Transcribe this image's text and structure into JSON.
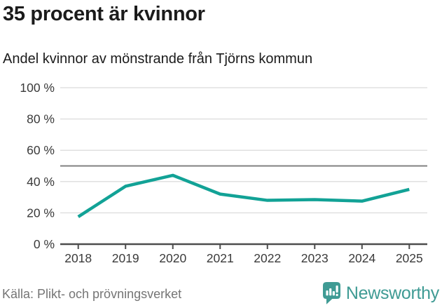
{
  "chart_data": {
    "type": "line",
    "title": "35 procent är kvinnor",
    "subtitle": "Andel kvinnor av mönstrande från Tjörns kommun",
    "x": [
      "2018",
      "2019",
      "2020",
      "2021",
      "2022",
      "2023",
      "2024",
      "2025"
    ],
    "series": [
      {
        "name": "Andel kvinnor av mönstrande",
        "values": [
          17.5,
          37,
          44,
          32,
          28,
          28.5,
          27.5,
          35
        ]
      }
    ],
    "xlabel": "",
    "ylabel": "",
    "ylim": [
      0,
      100
    ],
    "yticks": [
      0,
      20,
      40,
      60,
      80,
      100
    ],
    "ytick_suffix": " %",
    "reference_line_y": 50,
    "grid": true,
    "legend": "none",
    "colors": {
      "line": "#12a296",
      "grid": "#e0e0e0",
      "reference": "#808080",
      "axis": "#4d4d4d",
      "tick_label": "#3a3a3a"
    }
  },
  "footer": {
    "source": "Källa: Plikt- och prövningsverket",
    "brand": "Newsworthy",
    "brand_color": "#3f9b94"
  }
}
